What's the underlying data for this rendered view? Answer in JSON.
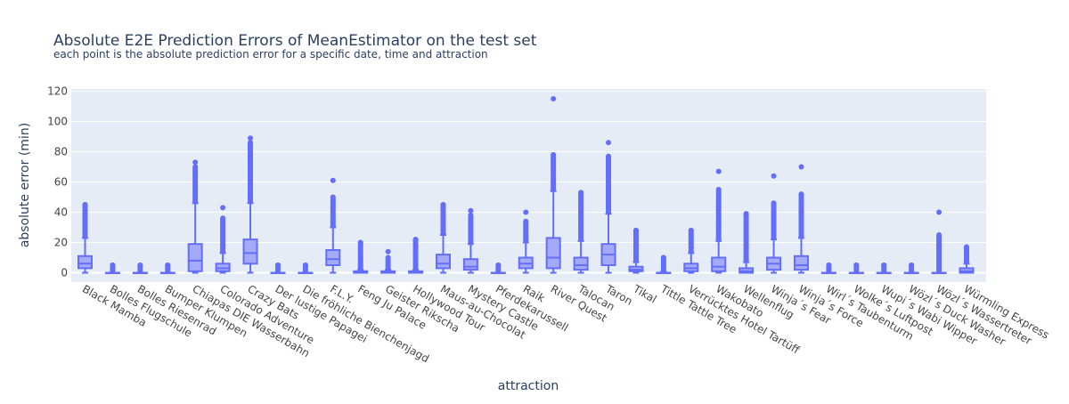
{
  "chart_data": {
    "type": "box",
    "title": "Absolute E2E Prediction Errors of MeanEstimator on the test set",
    "subtitle": "each point is the absolute prediction error for a specific date, time and attraction",
    "xlabel": "attraction",
    "ylabel": "absolute error (min)",
    "ylim": [
      -5,
      122
    ],
    "yticks": [
      0,
      20,
      40,
      60,
      80,
      100,
      120
    ],
    "grid": true,
    "legend": "none",
    "colors": {
      "plot_bg": "#e5ecf6",
      "box_line": "#636efa",
      "box_fill": "#a5aaf8",
      "text": "#444444",
      "title": "#2a3f5f",
      "grid": "#ffffff"
    },
    "categories": [
      "Black Mamba",
      "Bolles Flugschule",
      "Bolles Riesenrad",
      "Bumper Klumpen",
      "Chiapas DIE Wasserbahn",
      "Colorado Adventure",
      "Crazy Bats",
      "Der lustige Papagei",
      "Die fröhliche Bienchenjagd",
      "F.L.Y.",
      "Feng Ju Palace",
      "Geister Rikscha",
      "Hollywood Tour",
      "Maus-au-Chocolat",
      "Mystery Castle",
      "Pferdekarussell",
      "Raik",
      "River Quest",
      "Talocan",
      "Taron",
      "Tikal",
      "Tittle Tattle Tree",
      "Verrücktes Hotel Tartüff",
      "Wakobato",
      "Wellenflug",
      "Winja´s Fear",
      "Winja´s Force",
      "Wirl´s Taubenturm",
      "Wolke´s Luftpost",
      "Wupi´s Wabi Wipper",
      "Wözl´s Duck Washer",
      "Wözl´s Wassertreter",
      "Würmling Express"
    ],
    "series": [
      {
        "min": 0,
        "q1": 3,
        "median": 6,
        "q3": 11,
        "max": 23,
        "outliers_from": 24,
        "outliers_to": 45,
        "top": 45
      },
      {
        "min": 0,
        "q1": 0,
        "median": 0,
        "q3": 0,
        "max": 0,
        "outliers_from": 1,
        "outliers_to": 5,
        "top": 5
      },
      {
        "min": 0,
        "q1": 0,
        "median": 0,
        "q3": 0,
        "max": 0,
        "outliers_from": 1,
        "outliers_to": 5,
        "top": 5
      },
      {
        "min": 0,
        "q1": 0,
        "median": 0,
        "q3": 0,
        "max": 0,
        "outliers_from": 1,
        "outliers_to": 5,
        "top": 5
      },
      {
        "min": 0,
        "q1": 1,
        "median": 8,
        "q3": 19,
        "max": 46,
        "outliers_from": 47,
        "outliers_to": 70,
        "top": 73
      },
      {
        "min": 0,
        "q1": 1,
        "median": 3,
        "q3": 6,
        "max": 13,
        "outliers_from": 14,
        "outliers_to": 36,
        "top": 43
      },
      {
        "min": 0,
        "q1": 6,
        "median": 13,
        "q3": 22,
        "max": 46,
        "outliers_from": 47,
        "outliers_to": 86,
        "top": 89
      },
      {
        "min": 0,
        "q1": 0,
        "median": 0,
        "q3": 0,
        "max": 0,
        "outliers_from": 1,
        "outliers_to": 5,
        "top": 5
      },
      {
        "min": 0,
        "q1": 0,
        "median": 0,
        "q3": 0,
        "max": 0,
        "outliers_from": 1,
        "outliers_to": 5,
        "top": 5
      },
      {
        "min": 0,
        "q1": 5,
        "median": 9,
        "q3": 15,
        "max": 30,
        "outliers_from": 31,
        "outliers_to": 50,
        "top": 61
      },
      {
        "min": 0,
        "q1": 0,
        "median": 0,
        "q3": 1,
        "max": 2,
        "outliers_from": 3,
        "outliers_to": 20,
        "top": 20
      },
      {
        "min": 0,
        "q1": 0,
        "median": 0,
        "q3": 1,
        "max": 2,
        "outliers_from": 3,
        "outliers_to": 10,
        "top": 14
      },
      {
        "min": 0,
        "q1": 0,
        "median": 0,
        "q3": 1,
        "max": 2,
        "outliers_from": 3,
        "outliers_to": 22,
        "top": 22
      },
      {
        "min": 0,
        "q1": 3,
        "median": 6,
        "q3": 12,
        "max": 25,
        "outliers_from": 26,
        "outliers_to": 45,
        "top": 45
      },
      {
        "min": 0,
        "q1": 2,
        "median": 4,
        "q3": 9,
        "max": 19,
        "outliers_from": 20,
        "outliers_to": 38,
        "top": 41
      },
      {
        "min": 0,
        "q1": 0,
        "median": 0,
        "q3": 0,
        "max": 0,
        "outliers_from": 1,
        "outliers_to": 5,
        "top": 5
      },
      {
        "min": 0,
        "q1": 3,
        "median": 6,
        "q3": 10,
        "max": 20,
        "outliers_from": 21,
        "outliers_to": 34,
        "top": 40
      },
      {
        "min": 0,
        "q1": 3,
        "median": 10,
        "q3": 23,
        "max": 54,
        "outliers_from": 55,
        "outliers_to": 78,
        "top": 115
      },
      {
        "min": 0,
        "q1": 2,
        "median": 5,
        "q3": 10,
        "max": 21,
        "outliers_from": 22,
        "outliers_to": 53,
        "top": 53
      },
      {
        "min": 0,
        "q1": 5,
        "median": 12,
        "q3": 19,
        "max": 39,
        "outliers_from": 40,
        "outliers_to": 77,
        "top": 86
      },
      {
        "min": 0,
        "q1": 1,
        "median": 2,
        "q3": 4,
        "max": 7,
        "outliers_from": 8,
        "outliers_to": 28,
        "top": 28
      },
      {
        "min": 0,
        "q1": 0,
        "median": 0,
        "q3": 0,
        "max": 1,
        "outliers_from": 2,
        "outliers_to": 10,
        "top": 10
      },
      {
        "min": 0,
        "q1": 1,
        "median": 3,
        "q3": 6,
        "max": 13,
        "outliers_from": 14,
        "outliers_to": 28,
        "top": 28
      },
      {
        "min": 0,
        "q1": 1,
        "median": 4,
        "q3": 10,
        "max": 21,
        "outliers_from": 22,
        "outliers_to": 55,
        "top": 67
      },
      {
        "min": 0,
        "q1": 0,
        "median": 1,
        "q3": 3,
        "max": 7,
        "outliers_from": 8,
        "outliers_to": 39,
        "top": 39
      },
      {
        "min": 0,
        "q1": 2,
        "median": 6,
        "q3": 10,
        "max": 22,
        "outliers_from": 23,
        "outliers_to": 46,
        "top": 64
      },
      {
        "min": 0,
        "q1": 2,
        "median": 5,
        "q3": 11,
        "max": 23,
        "outliers_from": 24,
        "outliers_to": 52,
        "top": 70
      },
      {
        "min": 0,
        "q1": 0,
        "median": 0,
        "q3": 0,
        "max": 0,
        "outliers_from": 1,
        "outliers_to": 5,
        "top": 5
      },
      {
        "min": 0,
        "q1": 0,
        "median": 0,
        "q3": 0,
        "max": 0,
        "outliers_from": 1,
        "outliers_to": 5,
        "top": 5
      },
      {
        "min": 0,
        "q1": 0,
        "median": 0,
        "q3": 0,
        "max": 0,
        "outliers_from": 1,
        "outliers_to": 5,
        "top": 5
      },
      {
        "min": 0,
        "q1": 0,
        "median": 0,
        "q3": 0,
        "max": 0,
        "outliers_from": 1,
        "outliers_to": 5,
        "top": 5
      },
      {
        "min": 0,
        "q1": 0,
        "median": 0,
        "q3": 0,
        "max": 0,
        "outliers_from": 1,
        "outliers_to": 25,
        "top": 40
      },
      {
        "min": 0,
        "q1": 0,
        "median": 1,
        "q3": 3,
        "max": 6,
        "outliers_from": 7,
        "outliers_to": 17,
        "top": 17
      }
    ]
  }
}
